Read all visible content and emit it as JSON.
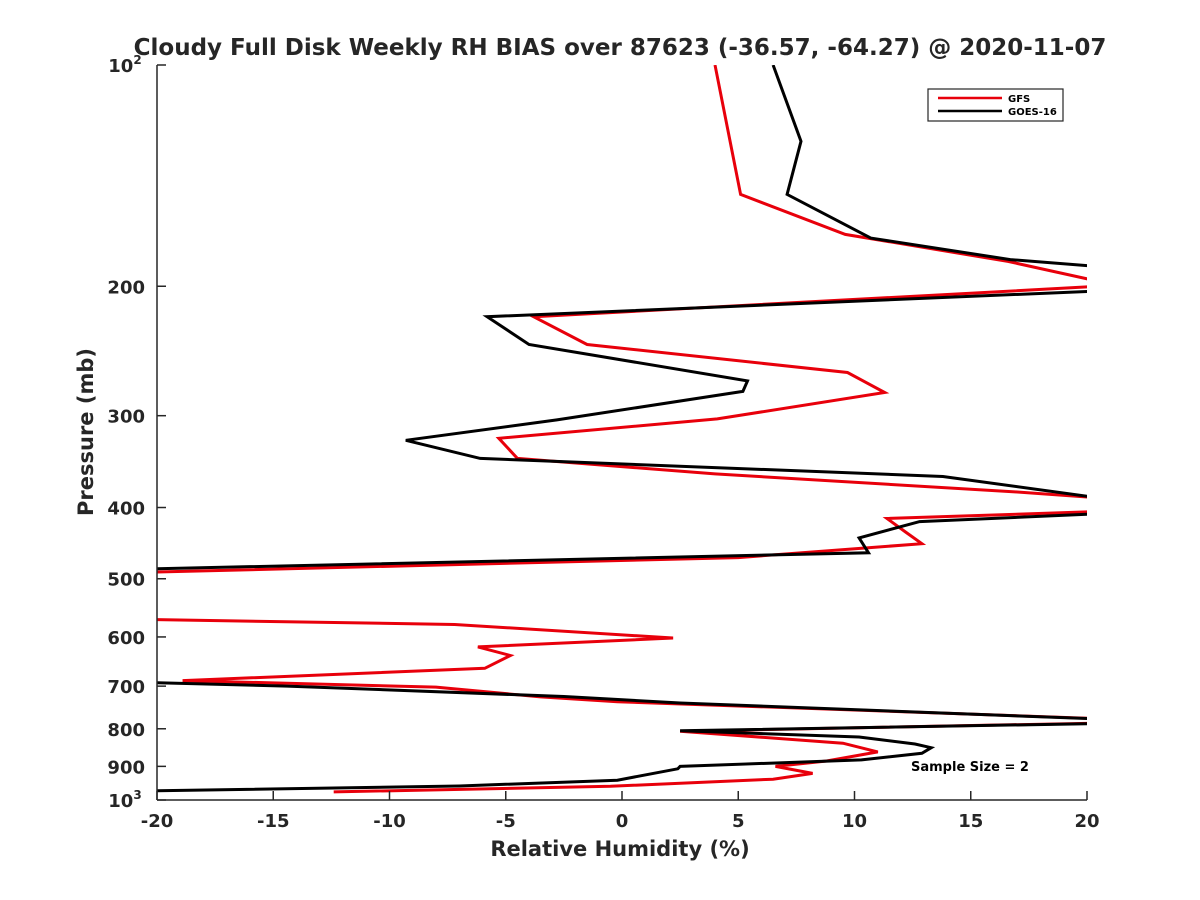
{
  "chart_data": {
    "type": "line",
    "title": "Cloudy Full Disk Weekly RH BIAS over 87623 (-36.57, -64.27) @ 2020-11-07",
    "xlabel": "Relative Humidity (%)",
    "ylabel": "Pressure (mb)",
    "xlim": [
      -20,
      20
    ],
    "ylim": [
      100,
      1000
    ],
    "yscale": "log",
    "yreversed": true,
    "grid": false,
    "legend_position": "top-right",
    "x_ticks": [
      {
        "value": -20,
        "label": "-20"
      },
      {
        "value": -15,
        "label": "-15"
      },
      {
        "value": -10,
        "label": "-10"
      },
      {
        "value": -5,
        "label": "-5"
      },
      {
        "value": 0,
        "label": "0"
      },
      {
        "value": 5,
        "label": "5"
      },
      {
        "value": 10,
        "label": "10"
      },
      {
        "value": 15,
        "label": "15"
      },
      {
        "value": 20,
        "label": "20"
      }
    ],
    "y_ticks": [
      {
        "value": 100,
        "base": "10",
        "sup": "2"
      },
      {
        "value": 200,
        "base": "200",
        "sup": ""
      },
      {
        "value": 300,
        "base": "300",
        "sup": ""
      },
      {
        "value": 400,
        "base": "400",
        "sup": ""
      },
      {
        "value": 500,
        "base": "500",
        "sup": ""
      },
      {
        "value": 600,
        "base": "600",
        "sup": ""
      },
      {
        "value": 700,
        "base": "700",
        "sup": ""
      },
      {
        "value": 800,
        "base": "800",
        "sup": ""
      },
      {
        "value": 900,
        "base": "900",
        "sup": ""
      },
      {
        "value": 1000,
        "base": "10",
        "sup": "3"
      }
    ],
    "series": [
      {
        "name": "GFS",
        "color": "#e8000b",
        "points": [
          [
            4.0,
            100
          ],
          [
            5.1,
            150
          ],
          [
            9.6,
            170
          ],
          [
            16.6,
            185
          ],
          [
            20.5,
            197
          ],
          [
            20.5,
            200
          ],
          [
            -3.8,
            220
          ],
          [
            -1.5,
            240
          ],
          [
            9.7,
            262
          ],
          [
            11.3,
            279
          ],
          [
            4.1,
            303
          ],
          [
            -5.3,
            322
          ],
          [
            -4.5,
            343
          ],
          [
            4.0,
            360
          ],
          [
            17.0,
            381
          ],
          [
            20.5,
            388
          ],
          [
            20.5,
            405
          ],
          [
            11.4,
            414
          ],
          [
            12.2,
            432
          ],
          [
            12.9,
            448
          ],
          [
            5.0,
            468
          ],
          [
            -20.5,
            490
          ],
          [
            -20.5,
            568
          ],
          [
            -7.2,
            577
          ],
          [
            2.2,
            602
          ],
          [
            -6.2,
            619
          ],
          [
            -4.8,
            636
          ],
          [
            -5.9,
            662
          ],
          [
            -18.9,
            688
          ],
          [
            -8.0,
            702
          ],
          [
            -3.5,
            724
          ],
          [
            -0.2,
            735
          ],
          [
            20.5,
            775
          ],
          [
            20.5,
            786
          ],
          [
            2.5,
            806
          ],
          [
            9.5,
            837
          ],
          [
            11.0,
            860
          ],
          [
            8.8,
            885
          ],
          [
            6.6,
            900
          ],
          [
            8.2,
            920
          ],
          [
            6.5,
            937
          ],
          [
            -0.5,
            958
          ],
          [
            -12.4,
            975
          ]
        ]
      },
      {
        "name": "GOES-16",
        "color": "#000000",
        "points": [
          [
            6.5,
            100
          ],
          [
            7.7,
            127
          ],
          [
            7.1,
            150
          ],
          [
            10.7,
            172
          ],
          [
            16.7,
            184
          ],
          [
            20.5,
            188
          ],
          [
            20.5,
            203
          ],
          [
            -5.8,
            220
          ],
          [
            -4.0,
            240
          ],
          [
            5.4,
            269
          ],
          [
            5.2,
            278
          ],
          [
            -2.8,
            304
          ],
          [
            -9.3,
            324
          ],
          [
            -6.1,
            343
          ],
          [
            13.8,
            363
          ],
          [
            20.5,
            388
          ],
          [
            20.5,
            408
          ],
          [
            12.8,
            418
          ],
          [
            10.2,
            440
          ],
          [
            10.6,
            461
          ],
          [
            -20.5,
            485
          ],
          [
            -20.5,
            692
          ],
          [
            -14.4,
            700
          ],
          [
            -2.5,
            723
          ],
          [
            2.5,
            738
          ],
          [
            20.5,
            776
          ],
          [
            20.5,
            787
          ],
          [
            2.5,
            805
          ],
          [
            10.2,
            821
          ],
          [
            12.6,
            839
          ],
          [
            13.3,
            849
          ],
          [
            12.9,
            864
          ],
          [
            10.3,
            882
          ],
          [
            2.5,
            900
          ],
          [
            2.4,
            907
          ],
          [
            -0.2,
            940
          ],
          [
            -7.0,
            957
          ],
          [
            -20.5,
            972
          ]
        ]
      }
    ],
    "annotation": {
      "text": "Sample Size = 2"
    }
  }
}
